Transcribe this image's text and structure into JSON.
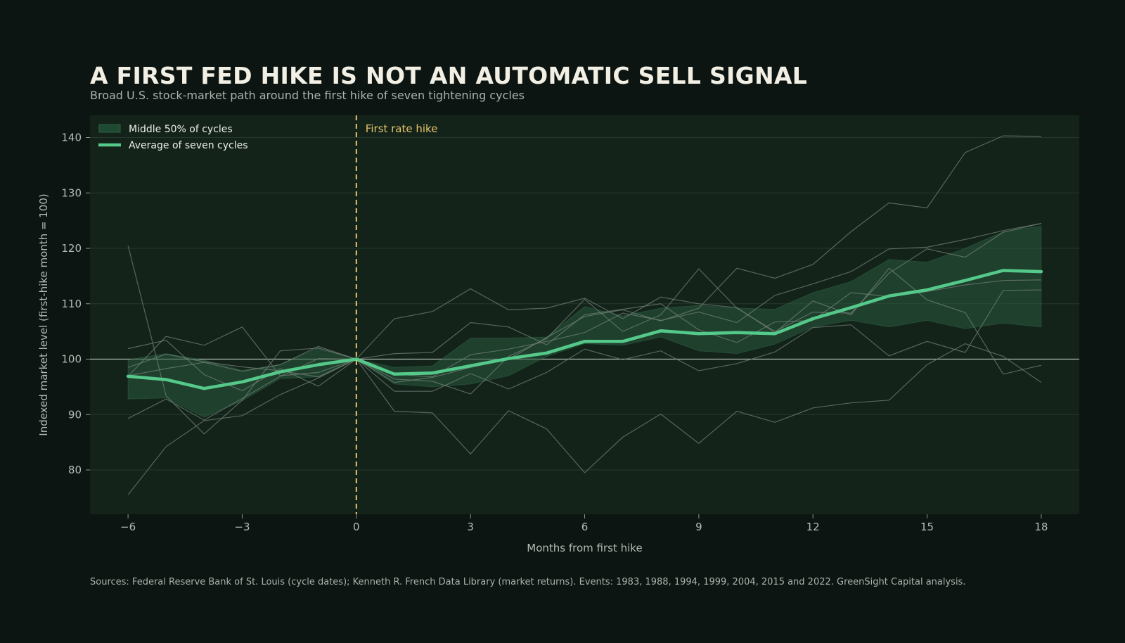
{
  "title": "A FIRST FED HIKE IS NOT AN AUTOMATIC SELL SIGNAL",
  "subtitle": "Broad U.S. stock-market path around the first hike of seven tightening cycles",
  "source": "Sources: Federal Reserve Bank of St. Louis (cycle dates); Kenneth R. French Data Library (market returns). Events: 1983, 1988, 1994, 1999, 2004, 2015 and 2022. GreenSight Capital analysis.",
  "colors": {
    "background": "#0c1511",
    "plot_background": "#13231a",
    "grid": "#26382d",
    "baseline": "#cfd6cf",
    "average": "#55c98a",
    "band": "#2a5a3e",
    "cycle": "#6e7d73",
    "annotation": "#e6c36a"
  },
  "chart_data": {
    "type": "line",
    "xlabel": "Months from first hike",
    "ylabel": "Indexed market level (first-hike month = 100)",
    "xlim": [
      -7,
      19
    ],
    "ylim": [
      72,
      144
    ],
    "xticks": [
      -6,
      -3,
      0,
      3,
      6,
      9,
      12,
      15,
      18
    ],
    "xtick_labels": [
      "−6",
      "−3",
      "0",
      "3",
      "6",
      "9",
      "12",
      "15",
      "18"
    ],
    "yticks": [
      80,
      90,
      100,
      110,
      120,
      130,
      140
    ],
    "grid": true,
    "baseline": 100,
    "legend_position": "top-left",
    "legend": {
      "band_label": "Middle 50% of cycles",
      "average_label": "Average of seven cycles"
    },
    "annotation": {
      "x": 0,
      "label": "First rate hike"
    },
    "x": [
      -6,
      -5,
      -4,
      -3,
      -2,
      -1,
      0,
      1,
      2,
      3,
      4,
      5,
      6,
      7,
      8,
      9,
      10,
      11,
      12,
      13,
      14,
      15,
      16,
      17,
      18
    ],
    "average": [
      96.9,
      96.3,
      94.7,
      95.9,
      97.7,
      99.0,
      100,
      97.3,
      97.5,
      98.8,
      100.1,
      101.1,
      103.2,
      103.2,
      105.1,
      104.6,
      104.8,
      104.6,
      107.3,
      109.3,
      111.4,
      112.5,
      114.2,
      116.0,
      115.8
    ],
    "band": {
      "upper": [
        99.9,
        101.0,
        99.8,
        98.0,
        99.0,
        102.0,
        100,
        98.5,
        98.8,
        103.8,
        103.8,
        104.0,
        109.5,
        107.8,
        109.2,
        109.7,
        109.2,
        109.0,
        112.0,
        114.0,
        118.0,
        117.5,
        120.0,
        123.0,
        124.0
      ],
      "lower": [
        92.8,
        93.0,
        89.5,
        92.5,
        96.5,
        96.8,
        100,
        95.5,
        95.0,
        95.5,
        97.0,
        100.5,
        102.8,
        102.5,
        104.0,
        101.5,
        101.0,
        102.7,
        105.8,
        107.0,
        105.8,
        107.0,
        105.5,
        106.5,
        105.8
      ]
    },
    "cycles": [
      [
        120.5,
        93.4,
        86.5,
        92.6,
        101.5,
        102.0,
        100,
        107.3,
        108.6,
        112.7,
        108.9,
        109.2,
        111.0,
        107.3,
        111.2,
        110.0,
        109.3,
        104.8,
        110.5,
        108.0,
        116.4,
        110.7,
        108.4,
        97.3,
        98.9
      ],
      [
        75.5,
        84.2,
        88.9,
        89.8,
        93.6,
        96.6,
        100,
        90.6,
        90.3,
        82.9,
        90.7,
        87.4,
        79.5,
        85.9,
        90.1,
        84.8,
        90.6,
        88.6,
        91.2,
        92.1,
        92.6,
        99.0,
        102.8,
        100.5,
        95.8
      ],
      [
        101.9,
        103.4,
        97.2,
        94.3,
        98.3,
        95.1,
        100,
        101.0,
        101.2,
        106.6,
        105.8,
        102.6,
        108.0,
        109.0,
        110.0,
        105.3,
        103.0,
        106.7,
        107.0,
        112.0,
        111.3,
        112.2,
        113.4,
        114.2,
        114.3
      ],
      [
        89.3,
        92.8,
        89.0,
        92.9,
        96.9,
        100.1,
        100,
        94.2,
        94.2,
        97.4,
        94.6,
        97.6,
        101.8,
        99.9,
        101.5,
        97.9,
        99.2,
        101.3,
        105.7,
        106.2,
        100.6,
        103.2,
        101.2,
        112.4,
        112.5
      ],
      [
        96.9,
        104.1,
        102.5,
        105.8,
        97.0,
        97.6,
        100,
        96.4,
        96.0,
        93.7,
        100.5,
        103.7,
        110.8,
        105.0,
        108.0,
        116.3,
        109.2,
        105.0,
        108.5,
        108.3,
        115.5,
        119.9,
        118.4,
        122.9,
        124.5
      ],
      [
        97.0,
        98.3,
        99.4,
        97.8,
        99.0,
        102.3,
        100,
        95.8,
        96.7,
        98.5,
        100.0,
        103.9,
        107.7,
        108.9,
        106.9,
        109.2,
        116.4,
        114.6,
        117.1,
        123.0,
        128.2,
        127.3,
        137.3,
        140.3,
        140.2
      ],
      [
        98.5,
        100.9,
        99.5,
        98.6,
        97.9,
        96.8,
        100,
        97.3,
        96.8,
        100.8,
        101.8,
        103.2,
        104.8,
        108.3,
        107.0,
        108.5,
        106.6,
        111.5,
        113.6,
        115.8,
        119.9,
        120.2,
        121.6,
        123.2,
        124.5
      ]
    ]
  }
}
